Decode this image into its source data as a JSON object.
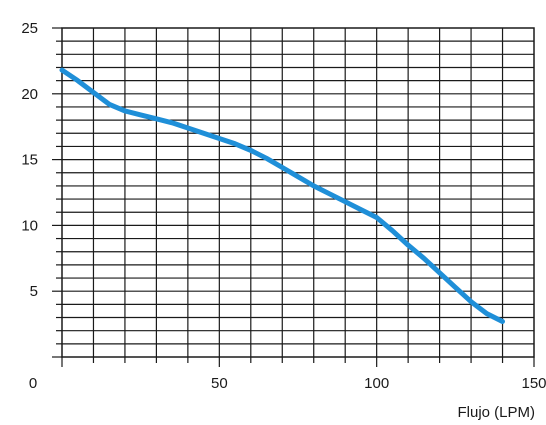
{
  "chart_data": {
    "type": "line",
    "title": "",
    "xlabel": "Flujo (LPM)",
    "ylabel": "",
    "xlim": [
      0,
      150
    ],
    "ylim": [
      0,
      25
    ],
    "x_ticks": [
      0,
      50,
      100,
      150
    ],
    "y_ticks": [
      5,
      10,
      15,
      20,
      25
    ],
    "grid": true,
    "legend": "none",
    "series": [
      {
        "color": "#1f8fd8",
        "x": [
          0,
          5,
          10,
          15,
          20,
          25,
          30,
          35,
          40,
          45,
          50,
          55,
          60,
          65,
          70,
          75,
          80,
          85,
          90,
          95,
          100,
          105,
          110,
          115,
          120,
          125,
          130,
          135,
          140
        ],
        "y": [
          21.8,
          21.0,
          20.1,
          19.2,
          18.7,
          18.4,
          18.1,
          17.8,
          17.4,
          17.0,
          16.6,
          16.2,
          15.7,
          15.1,
          14.4,
          13.7,
          13.0,
          12.4,
          11.8,
          11.2,
          10.6,
          9.6,
          8.5,
          7.5,
          6.4,
          5.3,
          4.2,
          3.3,
          2.7
        ]
      }
    ]
  }
}
